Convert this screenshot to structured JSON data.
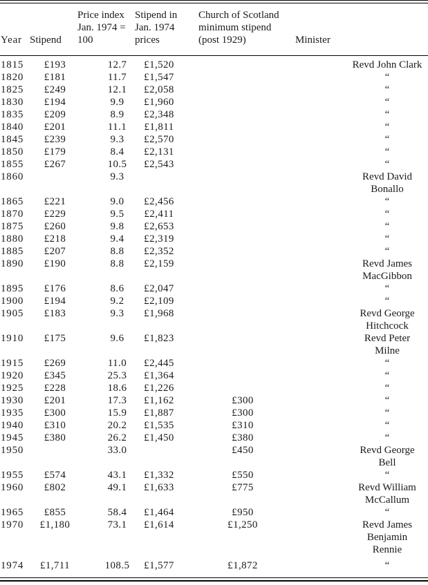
{
  "table": {
    "columns": {
      "year": {
        "label": "Year"
      },
      "stipend": {
        "label": "Stipend"
      },
      "index": {
        "label": "Price index\nJan. 1974 =\n100"
      },
      "prices": {
        "label": "Stipend in\nJan. 1974\nprices"
      },
      "church": {
        "label": "Church of Scotland\nminimum stipend\n(post 1929)"
      },
      "minister": {
        "label": "Minister"
      }
    },
    "ditto_mark": "“",
    "rows": [
      {
        "year": "1815",
        "stipend": "£193",
        "index": "12.7",
        "prices": "£1,520",
        "church": "",
        "minister": "Revd John Clark"
      },
      {
        "year": "1820",
        "stipend": "£181",
        "index": "11.7",
        "prices": "£1,547",
        "church": "",
        "minister": "“"
      },
      {
        "year": "1825",
        "stipend": "£249",
        "index": "12.1",
        "prices": "£2,058",
        "church": "",
        "minister": "“"
      },
      {
        "year": "1830",
        "stipend": "£194",
        "index": "9.9",
        "prices": "£1,960",
        "church": "",
        "minister": "“"
      },
      {
        "year": "1835",
        "stipend": "£209",
        "index": "8.9",
        "prices": "£2,348",
        "church": "",
        "minister": "“"
      },
      {
        "year": "1840",
        "stipend": "£201",
        "index": "11.1",
        "prices": "£1,811",
        "church": "",
        "minister": "“"
      },
      {
        "year": "1845",
        "stipend": "£239",
        "index": "9.3",
        "prices": "£2,570",
        "church": "",
        "minister": "“"
      },
      {
        "year": "1850",
        "stipend": "£179",
        "index": "8.4",
        "prices": "£2,131",
        "church": "",
        "minister": "“"
      },
      {
        "year": "1855",
        "stipend": "£267",
        "index": "10.5",
        "prices": "£2,543",
        "church": "",
        "minister": "“"
      },
      {
        "year": "1860",
        "stipend": "",
        "index": "9.3",
        "prices": "",
        "church": "",
        "minister": "Revd David\nBonallo"
      },
      {
        "year": "1865",
        "stipend": "£221",
        "index": "9.0",
        "prices": "£2,456",
        "church": "",
        "minister": "“"
      },
      {
        "year": "1870",
        "stipend": "£229",
        "index": "9.5",
        "prices": "£2,411",
        "church": "",
        "minister": "“"
      },
      {
        "year": "1875",
        "stipend": "£260",
        "index": "9.8",
        "prices": "£2,653",
        "church": "",
        "minister": "“"
      },
      {
        "year": "1880",
        "stipend": "£218",
        "index": "9.4",
        "prices": "£2,319",
        "church": "",
        "minister": "“"
      },
      {
        "year": "1885",
        "stipend": "£207",
        "index": "8.8",
        "prices": "£2,352",
        "church": "",
        "minister": "“"
      },
      {
        "year": "1890",
        "stipend": "£190",
        "index": "8.8",
        "prices": "£2,159",
        "church": "",
        "minister": "Revd James\nMacGibbon"
      },
      {
        "year": "1895",
        "stipend": "£176",
        "index": "8.6",
        "prices": "£2,047",
        "church": "",
        "minister": "“"
      },
      {
        "year": "1900",
        "stipend": "£194",
        "index": "9.2",
        "prices": "£2,109",
        "church": "",
        "minister": "“"
      },
      {
        "year": "1905",
        "stipend": "£183",
        "index": "9.3",
        "prices": "£1,968",
        "church": "",
        "minister": "Revd George\nHitchcock"
      },
      {
        "year": "1910",
        "stipend": "£175",
        "index": "9.6",
        "prices": "£1,823",
        "church": "",
        "minister": "Revd Peter\nMilne"
      },
      {
        "year": "1915",
        "stipend": "£269",
        "index": "11.0",
        "prices": "£2,445",
        "church": "",
        "minister": "“"
      },
      {
        "year": "1920",
        "stipend": "£345",
        "index": "25.3",
        "prices": "£1,364",
        "church": "",
        "minister": "“"
      },
      {
        "year": "1925",
        "stipend": "£228",
        "index": "18.6",
        "prices": "£1,226",
        "church": "",
        "minister": "“"
      },
      {
        "year": "1930",
        "stipend": "£201",
        "index": "17.3",
        "prices": "£1,162",
        "church": "£300",
        "minister": "“"
      },
      {
        "year": "1935",
        "stipend": "£300",
        "index": "15.9",
        "prices": "£1,887",
        "church": "£300",
        "minister": "“"
      },
      {
        "year": "1940",
        "stipend": "£310",
        "index": "20.2",
        "prices": "£1,535",
        "church": "£310",
        "minister": "“"
      },
      {
        "year": "1945",
        "stipend": "£380",
        "index": "26.2",
        "prices": "£1,450",
        "church": "£380",
        "minister": "“"
      },
      {
        "year": "1950",
        "stipend": "",
        "index": "33.0",
        "prices": "",
        "church": "£450",
        "minister": "Revd George\nBell"
      },
      {
        "year": "1955",
        "stipend": "£574",
        "index": "43.1",
        "prices": "£1,332",
        "church": "£550",
        "minister": "“"
      },
      {
        "year": "1960",
        "stipend": "£802",
        "index": "49.1",
        "prices": "£1,633",
        "church": "£775",
        "minister": "Revd William\nMcCallum"
      },
      {
        "year": "1965",
        "stipend": "£855",
        "index": "58.4",
        "prices": "£1,464",
        "church": "£950",
        "minister": "“"
      },
      {
        "year": "1970",
        "stipend": "£1,180",
        "index": "73.1",
        "prices": "£1,614",
        "church": "£1,250",
        "minister": "Revd James\nBenjamin\nRennie"
      },
      {
        "year": "1974",
        "stipend": "£1,711",
        "index": "108.5",
        "prices": "£1,577",
        "church": "£1,872",
        "minister": "“"
      }
    ],
    "colors": {
      "text": "#1a1a1a",
      "rule": "#000000",
      "background": "#ffffff"
    }
  }
}
